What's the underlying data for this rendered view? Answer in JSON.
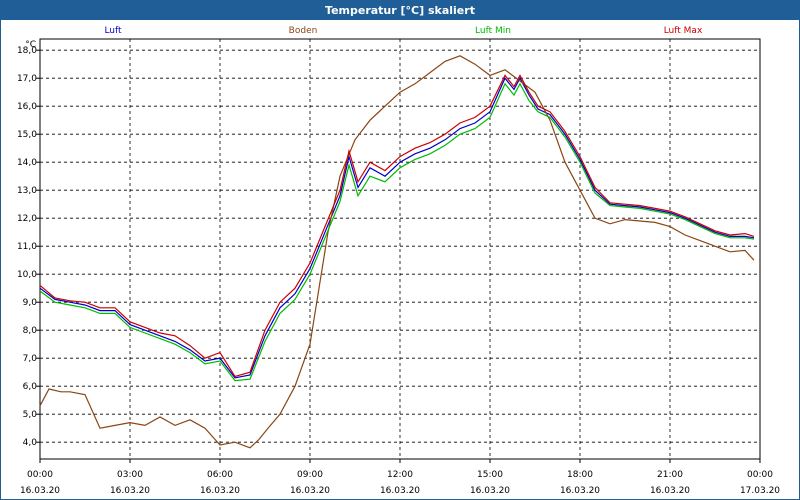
{
  "window": {
    "title": "Temperatur [°C] skaliert"
  },
  "chart_data": {
    "type": "line",
    "title": "Temperatur [°C] skaliert",
    "ylabel": "°C",
    "ylim": [
      3.4,
      18.4
    ],
    "xlim": [
      0,
      24
    ],
    "grid": true,
    "legend": "top",
    "y_ticks": [
      4.0,
      5.0,
      6.0,
      7.0,
      8.0,
      9.0,
      10.0,
      11.0,
      12.0,
      13.0,
      14.0,
      15.0,
      16.0,
      17.0,
      18.0
    ],
    "y_tick_labels": [
      "4,0",
      "5,0",
      "6,0",
      "7,0",
      "8,0",
      "9,0",
      "10,0",
      "11,0",
      "12,0",
      "13,0",
      "14,0",
      "15,0",
      "16,0",
      "17,0",
      "18,0"
    ],
    "x_ticks": [
      0,
      3,
      6,
      9,
      12,
      15,
      18,
      21,
      24
    ],
    "x_tick_times": [
      "00:00",
      "03:00",
      "06:00",
      "09:00",
      "12:00",
      "15:00",
      "18:00",
      "21:00",
      "00:00"
    ],
    "x_tick_dates": [
      "16.03.20",
      "16.03.20",
      "16.03.20",
      "16.03.20",
      "16.03.20",
      "16.03.20",
      "16.03.20",
      "16.03.20",
      "17.03.20"
    ],
    "series": [
      {
        "name": "Luft",
        "color": "#0000cc",
        "x": [
          0,
          0.5,
          1,
          1.5,
          2,
          2.5,
          3,
          3.5,
          4,
          4.5,
          5,
          5.5,
          6,
          6.5,
          7,
          7.5,
          8,
          8.5,
          9,
          9.5,
          10,
          10.3,
          10.6,
          11,
          11.5,
          12,
          12.5,
          13,
          13.5,
          14,
          14.5,
          15,
          15.5,
          15.8,
          16,
          16.3,
          16.6,
          17,
          17.5,
          18,
          18.5,
          19,
          19.5,
          20,
          20.5,
          21,
          21.5,
          22,
          22.5,
          23,
          23.5,
          23.8
        ],
        "y": [
          9.5,
          9.1,
          9.0,
          8.9,
          8.7,
          8.7,
          8.2,
          8.0,
          7.8,
          7.6,
          7.3,
          6.9,
          7.0,
          6.3,
          6.4,
          7.8,
          8.8,
          9.3,
          10.2,
          11.5,
          12.8,
          14.2,
          13.1,
          13.8,
          13.5,
          14.0,
          14.3,
          14.5,
          14.8,
          15.2,
          15.4,
          15.8,
          17.0,
          16.6,
          17.0,
          16.4,
          15.9,
          15.7,
          15.0,
          14.1,
          13.0,
          12.5,
          12.45,
          12.4,
          12.3,
          12.2,
          12.0,
          11.75,
          11.5,
          11.35,
          11.35,
          11.3
        ]
      },
      {
        "name": "Boden",
        "color": "#8b4513",
        "x": [
          0,
          0.3,
          0.7,
          1,
          1.5,
          2,
          2.5,
          3,
          3.5,
          4,
          4.5,
          5,
          5.5,
          6,
          6.5,
          7,
          7.3,
          7.6,
          8,
          8.5,
          9,
          9.3,
          9.6,
          10,
          10.5,
          11,
          11.5,
          12,
          12.5,
          13,
          13.5,
          14,
          14.5,
          15,
          15.5,
          16,
          16.5,
          17,
          17.5,
          18,
          18.5,
          19,
          19.5,
          20,
          20.5,
          21,
          21.5,
          22,
          22.5,
          23,
          23.5,
          23.8
        ],
        "y": [
          5.3,
          5.9,
          5.8,
          5.8,
          5.7,
          4.5,
          4.6,
          4.7,
          4.6,
          4.9,
          4.6,
          4.8,
          4.5,
          3.9,
          4.0,
          3.8,
          4.1,
          4.5,
          5.0,
          6.0,
          7.5,
          9.5,
          11.5,
          13.5,
          14.8,
          15.5,
          16.0,
          16.5,
          16.8,
          17.2,
          17.6,
          17.8,
          17.5,
          17.1,
          17.3,
          16.9,
          16.5,
          15.5,
          14.0,
          13.0,
          12.0,
          11.8,
          11.95,
          11.9,
          11.85,
          11.7,
          11.4,
          11.2,
          11.0,
          10.8,
          10.85,
          10.5
        ]
      },
      {
        "name": "Luft Min",
        "color": "#00bb00",
        "x": [
          0,
          0.5,
          1,
          1.5,
          2,
          2.5,
          3,
          3.5,
          4,
          4.5,
          5,
          5.5,
          6,
          6.5,
          7,
          7.5,
          8,
          8.5,
          9,
          9.5,
          10,
          10.3,
          10.6,
          11,
          11.5,
          12,
          12.5,
          13,
          13.5,
          14,
          14.5,
          15,
          15.5,
          15.8,
          16,
          16.3,
          16.6,
          17,
          17.5,
          18,
          18.5,
          19,
          19.5,
          20,
          20.5,
          21,
          21.5,
          22,
          22.5,
          23,
          23.5,
          23.8
        ],
        "y": [
          9.4,
          9.0,
          8.9,
          8.8,
          8.6,
          8.6,
          8.1,
          7.9,
          7.7,
          7.5,
          7.2,
          6.8,
          6.9,
          6.2,
          6.25,
          7.6,
          8.6,
          9.1,
          10.0,
          11.3,
          12.6,
          13.9,
          12.8,
          13.5,
          13.3,
          13.8,
          14.1,
          14.3,
          14.6,
          15.0,
          15.2,
          15.6,
          16.8,
          16.4,
          16.8,
          16.2,
          15.8,
          15.6,
          14.9,
          14.0,
          12.9,
          12.45,
          12.4,
          12.35,
          12.25,
          12.15,
          11.95,
          11.7,
          11.45,
          11.3,
          11.3,
          11.25
        ]
      },
      {
        "name": "Luft Max",
        "color": "#cc0000",
        "x": [
          0,
          0.5,
          1,
          1.5,
          2,
          2.5,
          3,
          3.5,
          4,
          4.5,
          5,
          5.5,
          6,
          6.5,
          7,
          7.5,
          8,
          8.5,
          9,
          9.5,
          10,
          10.3,
          10.6,
          11,
          11.5,
          12,
          12.5,
          13,
          13.5,
          14,
          14.5,
          15,
          15.5,
          15.8,
          16,
          16.3,
          16.6,
          17,
          17.5,
          18,
          18.5,
          19,
          19.5,
          20,
          20.5,
          21,
          21.5,
          22,
          22.5,
          23,
          23.5,
          23.8
        ],
        "y": [
          9.6,
          9.15,
          9.05,
          9.0,
          8.8,
          8.8,
          8.3,
          8.1,
          7.9,
          7.8,
          7.45,
          7.0,
          7.2,
          6.35,
          6.5,
          8.0,
          9.0,
          9.5,
          10.4,
          11.7,
          13.0,
          14.4,
          13.3,
          14.0,
          13.7,
          14.2,
          14.5,
          14.7,
          15.0,
          15.4,
          15.6,
          16.0,
          17.1,
          16.7,
          17.1,
          16.5,
          16.0,
          15.8,
          15.1,
          14.2,
          13.1,
          12.55,
          12.5,
          12.45,
          12.35,
          12.25,
          12.05,
          11.8,
          11.55,
          11.4,
          11.45,
          11.35
        ]
      }
    ]
  }
}
